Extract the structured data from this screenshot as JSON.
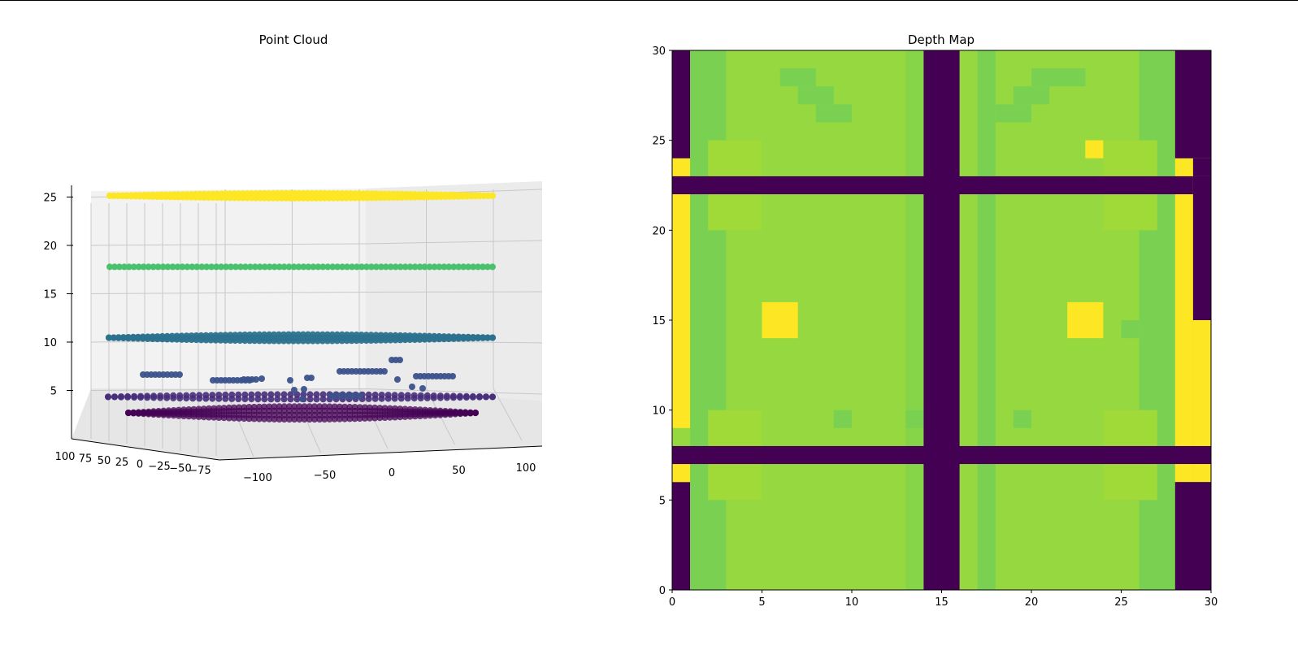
{
  "chart_data": [
    {
      "type": "scatter3d",
      "title": "Point Cloud",
      "x_ticks": [
        "−100",
        "−50",
        "0",
        "50",
        "100"
      ],
      "y_ticks": [
        "100",
        "75",
        "50",
        "25",
        "0",
        "−25",
        "−50",
        "−75"
      ],
      "z_ticks": [
        "5",
        "10",
        "15",
        "20",
        "25"
      ],
      "xlim": [
        -100,
        100
      ],
      "ylim": [
        -90,
        100
      ],
      "zlim": [
        0,
        26
      ],
      "grid": true,
      "colormap": "viridis",
      "series": [
        {
          "z": 24.8,
          "color": "#fde725",
          "points": "dense horizontal layer spanning x −100 to 100"
        },
        {
          "z": 18.2,
          "color": "#4ac16d",
          "points": "dense horizontal layer spanning x −100 to 100"
        },
        {
          "z": 10.2,
          "color": "#2c728e",
          "points": "dense horizontal layer spanning x −100 to 100"
        },
        {
          "z": 6.0,
          "color": "#3b528b",
          "points": "scattered clusters"
        },
        {
          "z": 3.5,
          "color": "#472d7b",
          "points": "dense horizontal layer"
        },
        {
          "z": 1.5,
          "color": "#440154",
          "points": "dense horizontal layer"
        }
      ]
    },
    {
      "type": "heatmap",
      "title": "Depth Map",
      "x_ticks": [
        "0",
        "5",
        "10",
        "15",
        "20",
        "25",
        "30"
      ],
      "y_ticks": [
        "0",
        "5",
        "10",
        "15",
        "20",
        "25",
        "30"
      ],
      "xlim": [
        0,
        30
      ],
      "ylim": [
        0,
        30
      ],
      "colormap": "viridis",
      "colors": {
        "background": "#95d840",
        "dark": "#440154",
        "yellow": "#fde725",
        "mid_green": "#7ad151",
        "light_green": "#a0da39",
        "bright_green": "#b0dd2f",
        "darker_green": "#86d549"
      },
      "regions": [
        {
          "x": [
            0,
            1
          ],
          "y": [
            0,
            6
          ],
          "value": "dark"
        },
        {
          "x": [
            0,
            1
          ],
          "y": [
            6,
            7
          ],
          "value": "yellow"
        },
        {
          "x": [
            0,
            1
          ],
          "y": [
            9,
            23
          ],
          "value": "yellow"
        },
        {
          "x": [
            0,
            1
          ],
          "y": [
            23,
            24
          ],
          "value": "yellow"
        },
        {
          "x": [
            0,
            1
          ],
          "y": [
            24,
            30
          ],
          "value": "dark"
        },
        {
          "x": [
            1,
            3
          ],
          "y": [
            0,
            30
          ],
          "value": "mid_green"
        },
        {
          "x": [
            13,
            14
          ],
          "y": [
            0,
            30
          ],
          "value": "darker_green"
        },
        {
          "x": [
            26,
            28
          ],
          "y": [
            0,
            30
          ],
          "value": "mid_green"
        },
        {
          "x": [
            17,
            18
          ],
          "y": [
            0,
            30
          ],
          "value": "mid_green"
        },
        {
          "x": [
            2,
            5
          ],
          "y": [
            20,
            25
          ],
          "value": "light_green"
        },
        {
          "x": [
            2,
            5
          ],
          "y": [
            5,
            10
          ],
          "value": "light_green"
        },
        {
          "x": [
            24,
            27
          ],
          "y": [
            20,
            25
          ],
          "value": "light_green"
        },
        {
          "x": [
            24,
            27
          ],
          "y": [
            5,
            10
          ],
          "value": "light_green"
        },
        {
          "x": [
            6,
            8
          ],
          "y": [
            28,
            29
          ],
          "value": "mid_green"
        },
        {
          "x": [
            7,
            9
          ],
          "y": [
            27,
            28
          ],
          "value": "mid_green"
        },
        {
          "x": [
            8,
            10
          ],
          "y": [
            26,
            27
          ],
          "value": "mid_green"
        },
        {
          "x": [
            20,
            23
          ],
          "y": [
            28,
            29
          ],
          "value": "mid_green"
        },
        {
          "x": [
            19,
            21
          ],
          "y": [
            27,
            28
          ],
          "value": "mid_green"
        },
        {
          "x": [
            18,
            20
          ],
          "y": [
            26,
            27
          ],
          "value": "mid_green"
        },
        {
          "x": [
            9,
            10
          ],
          "y": [
            9,
            10
          ],
          "value": "mid_green"
        },
        {
          "x": [
            13,
            14
          ],
          "y": [
            9,
            10
          ],
          "value": "mid_green"
        },
        {
          "x": [
            19,
            20
          ],
          "y": [
            9,
            10
          ],
          "value": "mid_green"
        },
        {
          "x": [
            25,
            26
          ],
          "y": [
            14,
            15
          ],
          "value": "mid_green"
        },
        {
          "x": [
            5,
            7
          ],
          "y": [
            14,
            16
          ],
          "value": "yellow"
        },
        {
          "x": [
            22,
            24
          ],
          "y": [
            14,
            16
          ],
          "value": "yellow"
        },
        {
          "x": [
            23,
            24
          ],
          "y": [
            24,
            25
          ],
          "value": "yellow"
        },
        {
          "x": [
            28,
            29
          ],
          "y": [
            23,
            24
          ],
          "value": "yellow"
        },
        {
          "x": [
            28,
            29
          ],
          "y": [
            6,
            23
          ],
          "value": "yellow"
        },
        {
          "x": [
            29,
            30
          ],
          "y": [
            6,
            15
          ],
          "value": "yellow"
        },
        {
          "x": [
            28,
            30
          ],
          "y": [
            0,
            6
          ],
          "value": "dark"
        },
        {
          "x": [
            29,
            30
          ],
          "y": [
            15,
            23
          ],
          "value": "dark"
        },
        {
          "x": [
            28,
            30
          ],
          "y": [
            24,
            30
          ],
          "value": "dark"
        },
        {
          "x": [
            29,
            30
          ],
          "y": [
            23,
            24
          ],
          "value": "dark"
        },
        {
          "x": [
            14,
            16
          ],
          "y": [
            0,
            30
          ],
          "value": "dark"
        },
        {
          "x": [
            0,
            30
          ],
          "y": [
            7,
            8
          ],
          "value": "dark"
        },
        {
          "x": [
            0,
            29
          ],
          "y": [
            22,
            23
          ],
          "value": "dark"
        }
      ]
    }
  ]
}
